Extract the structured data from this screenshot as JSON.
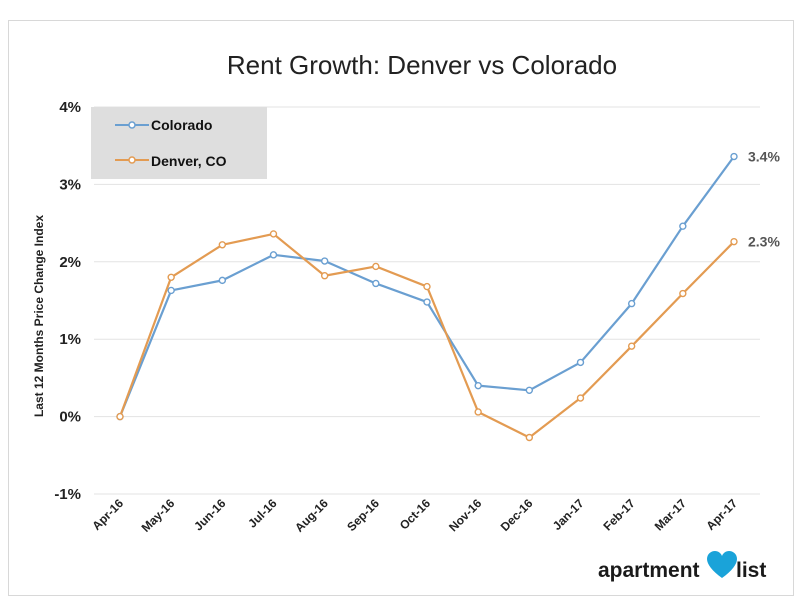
{
  "brand": {
    "word1": "apartment",
    "word2": "list",
    "heart_color": "#1aa3d9"
  },
  "chart_data": {
    "type": "line",
    "title": "Rent Growth: Denver vs Colorado",
    "xlabel": "",
    "ylabel": "Last 12 Months Price Change Index",
    "categories": [
      "Apr-16",
      "May-16",
      "Jun-16",
      "Jul-16",
      "Aug-16",
      "Sep-16",
      "Oct-16",
      "Nov-16",
      "Dec-16",
      "Jan-17",
      "Feb-17",
      "Mar-17",
      "Apr-17"
    ],
    "ylim": [
      -1,
      4
    ],
    "yticks": [
      -1,
      0,
      1,
      2,
      3,
      4
    ],
    "ytick_labels": [
      "-1%",
      "0%",
      "1%",
      "2%",
      "3%",
      "4%"
    ],
    "grid": true,
    "legend_position": "top-left",
    "series": [
      {
        "name": "Colorado",
        "color": "#6a9fd1",
        "values": [
          0.0,
          1.63,
          1.76,
          2.09,
          2.01,
          1.72,
          1.48,
          0.4,
          0.34,
          0.7,
          1.46,
          2.46,
          3.36
        ],
        "end_label": "3.4%"
      },
      {
        "name": "Denver, CO",
        "color": "#e39b52",
        "values": [
          0.0,
          1.8,
          2.22,
          2.36,
          1.82,
          1.94,
          1.68,
          0.06,
          -0.27,
          0.24,
          0.91,
          1.59,
          2.26
        ],
        "end_label": "2.3%"
      }
    ]
  }
}
